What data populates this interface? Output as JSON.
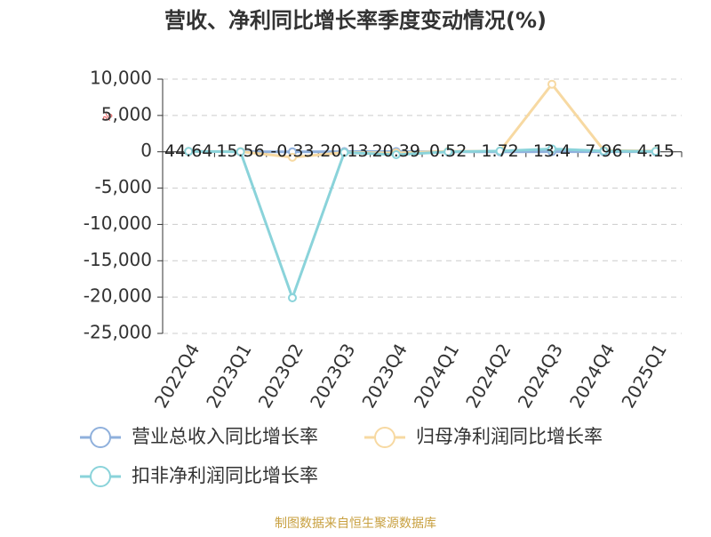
{
  "chart_data": {
    "type": "line",
    "title": "营收、净利同比增长率季度变动情况(%)",
    "y_label": "%",
    "categories": [
      "2022Q4",
      "2023Q1",
      "2023Q2",
      "2023Q3",
      "2023Q4",
      "2024Q1",
      "2024Q2",
      "2024Q3",
      "2024Q4",
      "2025Q1"
    ],
    "series": [
      {
        "name": "营业总收入同比增长率",
        "color": "#8fb0dc",
        "values": [
          44.64,
          15.56,
          -0.33,
          20.13,
          20.39,
          0.52,
          1.72,
          13.4,
          7.96,
          4.15
        ]
      },
      {
        "name": "归母净利润同比增长率",
        "color": "#f7d9a2",
        "values": [
          50,
          20,
          -750,
          -100,
          -150,
          50,
          100,
          9300,
          200,
          100
        ]
      },
      {
        "name": "扣非净利润同比增长率",
        "color": "#8ad3da",
        "values": [
          50,
          0,
          -20100,
          -100,
          -400,
          0,
          100,
          400,
          100,
          50
        ]
      }
    ],
    "ylim": [
      -25000,
      10000
    ],
    "yticks": [
      {
        "value": -25000,
        "label": "-25,000"
      },
      {
        "value": -20000,
        "label": "-20,000"
      },
      {
        "value": -15000,
        "label": "-15,000"
      },
      {
        "value": -10000,
        "label": "-10,000"
      },
      {
        "value": -5000,
        "label": "-5,000"
      },
      0,
      {
        "value": 5000,
        "label": "5,000"
      },
      {
        "value": 10000,
        "label": "10,000"
      }
    ],
    "grid": true,
    "source": "制图数据来自恒生聚源数据库"
  }
}
